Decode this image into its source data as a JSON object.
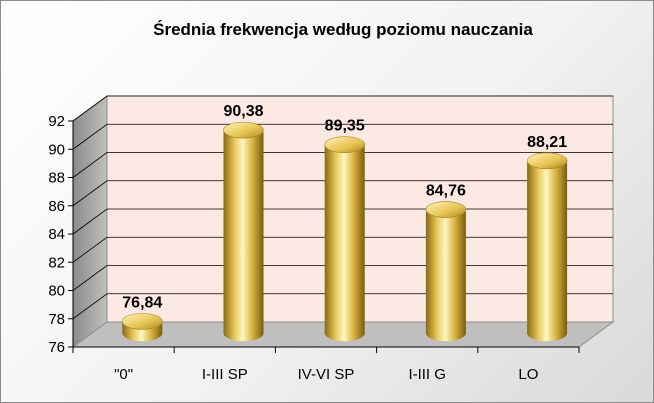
{
  "chart_data": {
    "type": "bar",
    "title": "Średnia frekwencja według poziomu nauczania",
    "categories": [
      "\"0\"",
      "I-III SP",
      "IV-VI SP",
      "I-III G",
      "LO"
    ],
    "values": [
      76.84,
      90.38,
      89.35,
      84.76,
      88.21
    ],
    "value_labels": [
      "76,84",
      "90,38",
      "89,35",
      "84,76",
      "88,21"
    ],
    "yticks": [
      "76",
      "78",
      "80",
      "82",
      "84",
      "86",
      "88",
      "90",
      "92"
    ],
    "ylim": [
      76,
      92
    ],
    "ystep": 2,
    "xlabel": "",
    "ylabel": "",
    "grid": true,
    "legend": "none",
    "colors": {
      "wall": "#fde9e3",
      "side_wall": "#a6a6a6",
      "floor": "#bfbfbf",
      "bar_light": "#fff7c0",
      "bar_mid": "#e8c95a",
      "bar_dark": "#8a6a12"
    }
  }
}
